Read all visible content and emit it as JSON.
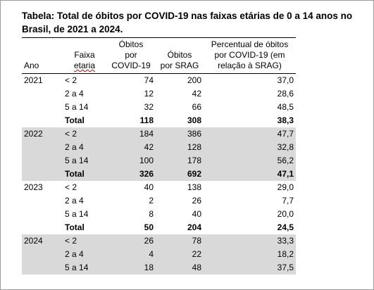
{
  "title": "Tabela: Total de óbitos por COVID-19 nas faixas etárias de 0 a 14 anos no Brasil, de 2021 a 2024.",
  "table": {
    "headers": [
      [
        "Ano"
      ],
      [
        "Faixa",
        "etaria"
      ],
      [
        "Óbitos",
        "por",
        "COVID-19"
      ],
      [
        "Óbitos",
        "por SRAG"
      ],
      [
        "Percentual de óbitos",
        "por COVID-19 (em",
        "relação à SRAG)"
      ]
    ],
    "groups": [
      {
        "year": "2021",
        "rows": [
          [
            "< 2",
            "74",
            "200",
            "37,0"
          ],
          [
            "2 a 4",
            "12",
            "42",
            "28,6"
          ],
          [
            "5 a 14",
            "32",
            "66",
            "48,5"
          ]
        ],
        "total": [
          "Total",
          "118",
          "308",
          "38,3"
        ]
      },
      {
        "year": "2022",
        "rows": [
          [
            "< 2",
            "184",
            "386",
            "47,7"
          ],
          [
            "2 a 4",
            "42",
            "128",
            "32,8"
          ],
          [
            "5 a 14",
            "100",
            "178",
            "56,2"
          ]
        ],
        "total": [
          "Total",
          "326",
          "692",
          "47,1"
        ]
      },
      {
        "year": "2023",
        "rows": [
          [
            "< 2",
            "40",
            "138",
            "29,0"
          ],
          [
            "2 a 4",
            "2",
            "26",
            "7,7"
          ],
          [
            "5 a 14",
            "8",
            "40",
            "20,0"
          ]
        ],
        "total": [
          "Total",
          "50",
          "204",
          "24,5"
        ]
      },
      {
        "year": "2024",
        "rows": [
          [
            "< 2",
            "26",
            "78",
            "33,3"
          ],
          [
            "2 a 4",
            "4",
            "22",
            "18,2"
          ],
          [
            "5 a 14",
            "18",
            "48",
            "37,5"
          ]
        ]
      }
    ]
  }
}
